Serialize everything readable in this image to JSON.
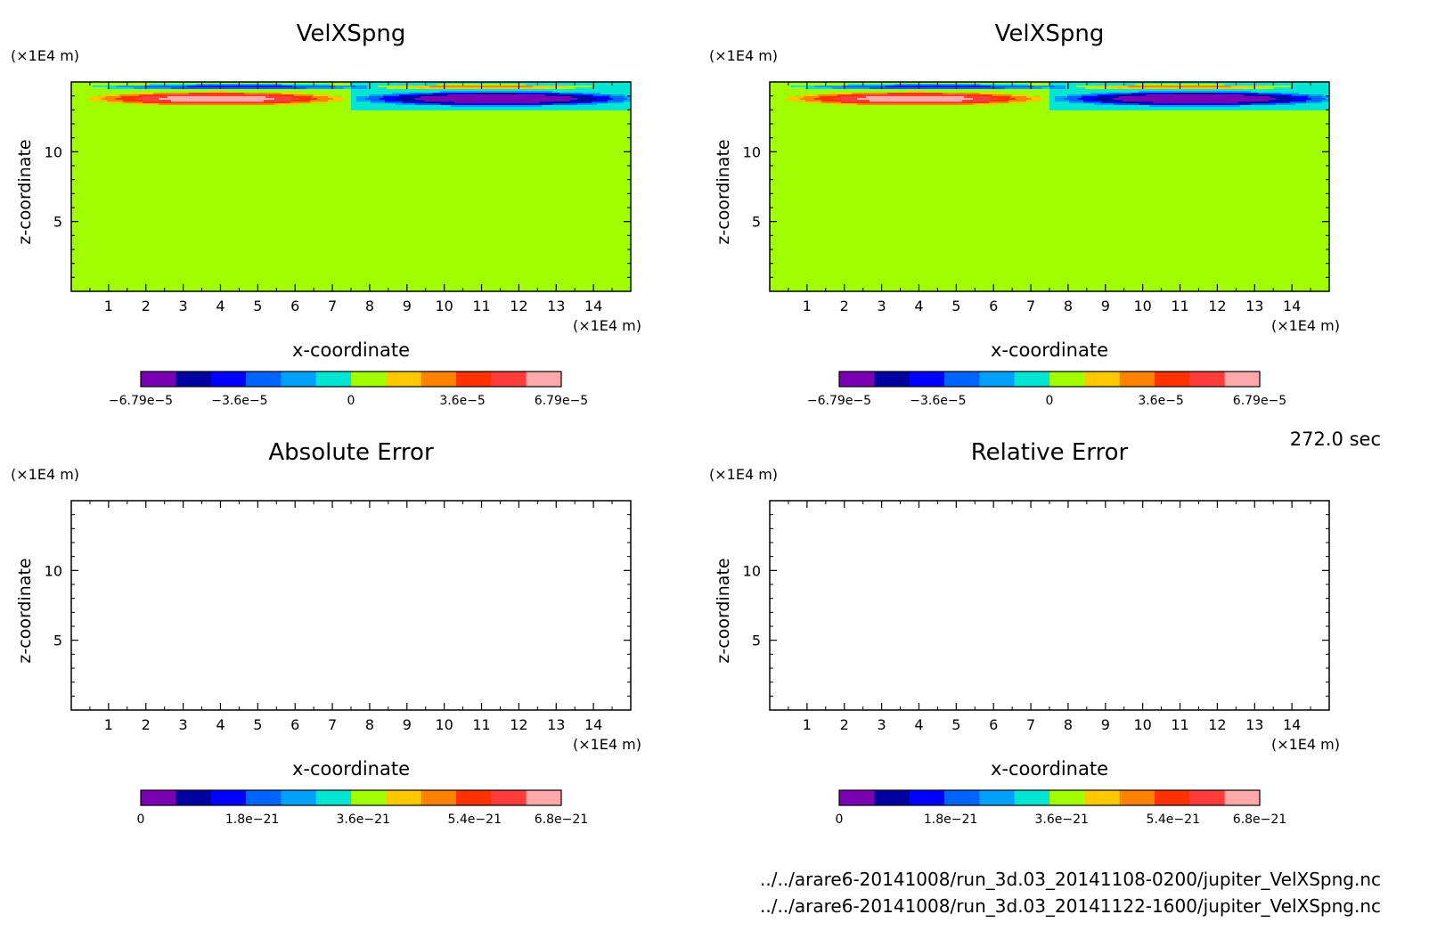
{
  "chart_data": [
    {
      "type": "heatmap",
      "title": "VelXSpng",
      "xlabel": "x-coordinate",
      "ylabel": "z-coordinate",
      "x_unit": "(×1E4 m)",
      "y_unit": "(×1E4 m)",
      "xlim": [
        0,
        15
      ],
      "ylim": [
        0,
        15
      ],
      "x_ticks": [
        "1",
        "2",
        "3",
        "4",
        "5",
        "6",
        "7",
        "8",
        "9",
        "10",
        "11",
        "12",
        "13",
        "14"
      ],
      "y_ticks": [
        "5",
        "10"
      ],
      "background_value": 0,
      "features": [
        {
          "kind": "positive",
          "x_center": 3.9,
          "z_center": 13.8,
          "x_half_width": 3.8,
          "z_half_width": 0.55,
          "peak": 6.79e-05
        },
        {
          "kind": "negative",
          "x_center": 11.4,
          "z_center": 13.8,
          "x_half_width": 3.9,
          "z_half_width": 0.55,
          "peak": -6.79e-05
        },
        {
          "kind": "negative_thin",
          "x_center": 4.5,
          "z_center": 14.65,
          "x_half_width": 4.0,
          "z_half_width": 0.2,
          "peak": -4e-05
        },
        {
          "kind": "positive_thin",
          "x_center": 11.0,
          "z_center": 14.65,
          "x_half_width": 3.5,
          "z_half_width": 0.2,
          "peak": 4e-05
        },
        {
          "kind": "step_region",
          "x_from": 7.5,
          "x_to": 15,
          "z_from": 13.0,
          "z_to": 15,
          "value": -1e-05
        }
      ],
      "colorbar": {
        "min": -6.79e-05,
        "max": 6.79e-05,
        "tick_labels": [
          "−6.79e−5",
          "−3.6e−5",
          "0",
          "3.6e−5",
          "6.79e−5"
        ],
        "colors": [
          "#7a00b4",
          "#0000a0",
          "#0000ff",
          "#0064ff",
          "#00a0ff",
          "#00e6d2",
          "#a0ff00",
          "#ffc800",
          "#ff8200",
          "#ff3200",
          "#ff3c3c",
          "#ffaaaa"
        ]
      }
    },
    {
      "type": "heatmap",
      "title": "VelXSpng",
      "xlabel": "x-coordinate",
      "ylabel": "z-coordinate",
      "x_unit": "(×1E4 m)",
      "y_unit": "(×1E4 m)",
      "xlim": [
        0,
        15
      ],
      "ylim": [
        0,
        15
      ],
      "x_ticks": [
        "1",
        "2",
        "3",
        "4",
        "5",
        "6",
        "7",
        "8",
        "9",
        "10",
        "11",
        "12",
        "13",
        "14"
      ],
      "y_ticks": [
        "5",
        "10"
      ],
      "background_value": 0,
      "features": [
        {
          "kind": "positive",
          "x_center": 3.9,
          "z_center": 13.8,
          "x_half_width": 3.8,
          "z_half_width": 0.55,
          "peak": 6.79e-05
        },
        {
          "kind": "negative",
          "x_center": 11.4,
          "z_center": 13.8,
          "x_half_width": 3.9,
          "z_half_width": 0.55,
          "peak": -6.79e-05
        },
        {
          "kind": "negative_thin",
          "x_center": 4.5,
          "z_center": 14.65,
          "x_half_width": 4.0,
          "z_half_width": 0.2,
          "peak": -4e-05
        },
        {
          "kind": "positive_thin",
          "x_center": 11.0,
          "z_center": 14.65,
          "x_half_width": 3.5,
          "z_half_width": 0.2,
          "peak": 4e-05
        },
        {
          "kind": "step_region",
          "x_from": 7.5,
          "x_to": 15,
          "z_from": 13.0,
          "z_to": 15,
          "value": -1e-05
        }
      ],
      "colorbar": {
        "min": -6.79e-05,
        "max": 6.79e-05,
        "tick_labels": [
          "−6.79e−5",
          "−3.6e−5",
          "0",
          "3.6e−5",
          "6.79e−5"
        ],
        "colors": [
          "#7a00b4",
          "#0000a0",
          "#0000ff",
          "#0064ff",
          "#00a0ff",
          "#00e6d2",
          "#a0ff00",
          "#ffc800",
          "#ff8200",
          "#ff3200",
          "#ff3c3c",
          "#ffaaaa"
        ]
      }
    },
    {
      "type": "heatmap",
      "title": "Absolute Error",
      "xlabel": "x-coordinate",
      "ylabel": "z-coordinate",
      "x_unit": "(×1E4 m)",
      "y_unit": "(×1E4 m)",
      "xlim": [
        0,
        15
      ],
      "ylim": [
        0,
        15
      ],
      "x_ticks": [
        "1",
        "2",
        "3",
        "4",
        "5",
        "6",
        "7",
        "8",
        "9",
        "10",
        "11",
        "12",
        "13",
        "14"
      ],
      "y_ticks": [
        "5",
        "10"
      ],
      "features": [],
      "colorbar": {
        "min": 0,
        "max": 6.8e-21,
        "tick_labels": [
          "0",
          "1.8e−21",
          "3.6e−21",
          "5.4e−21",
          "6.8e−21"
        ],
        "colors": [
          "#7a00b4",
          "#0000a0",
          "#0000ff",
          "#0064ff",
          "#00a0ff",
          "#00e6d2",
          "#a0ff00",
          "#ffc800",
          "#ff8200",
          "#ff3200",
          "#ff3c3c",
          "#ffaaaa"
        ]
      }
    },
    {
      "type": "heatmap",
      "title": "Relative Error",
      "xlabel": "x-coordinate",
      "ylabel": "z-coordinate",
      "x_unit": "(×1E4 m)",
      "y_unit": "(×1E4 m)",
      "xlim": [
        0,
        15
      ],
      "ylim": [
        0,
        15
      ],
      "x_ticks": [
        "1",
        "2",
        "3",
        "4",
        "5",
        "6",
        "7",
        "8",
        "9",
        "10",
        "11",
        "12",
        "13",
        "14"
      ],
      "y_ticks": [
        "5",
        "10"
      ],
      "features": [],
      "colorbar": {
        "min": 0,
        "max": 6.8e-21,
        "tick_labels": [
          "0",
          "1.8e−21",
          "3.6e−21",
          "5.4e−21",
          "6.8e−21"
        ],
        "colors": [
          "#7a00b4",
          "#0000a0",
          "#0000ff",
          "#0064ff",
          "#00a0ff",
          "#00e6d2",
          "#a0ff00",
          "#ffc800",
          "#ff8200",
          "#ff3200",
          "#ff3c3c",
          "#ffaaaa"
        ]
      }
    }
  ],
  "time_label": "272.0 sec",
  "file_paths": [
    "../../arare6-20141008/run_3d.03_20141108-0200/jupiter_VelXSpng.nc",
    "../../arare6-20141008/run_3d.03_20141122-1600/jupiter_VelXSpng.nc"
  ]
}
